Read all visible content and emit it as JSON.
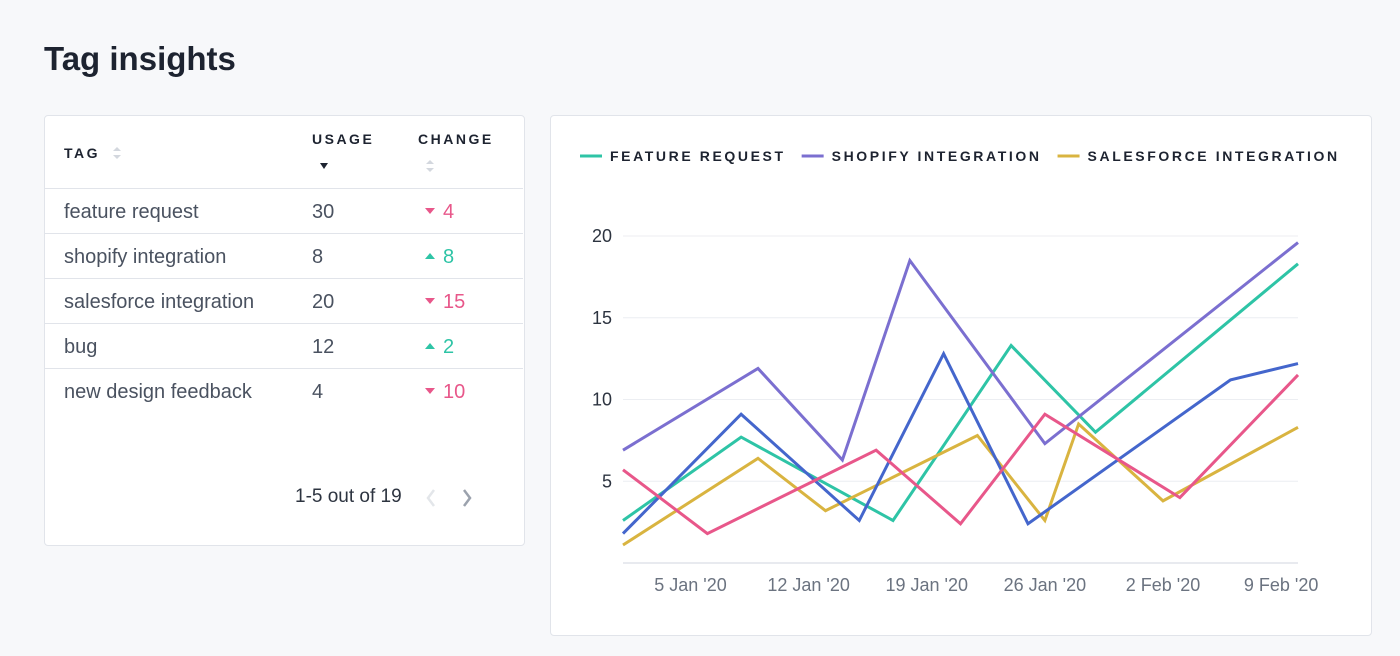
{
  "header": {
    "title": "Tag insights"
  },
  "table": {
    "columns": [
      "TAG",
      "USAGE",
      "CHANGE"
    ],
    "rows": [
      {
        "tag": "feature request",
        "usage": 30,
        "change": 4,
        "direction": "down"
      },
      {
        "tag": "shopify integration",
        "usage": 8,
        "change": 8,
        "direction": "up"
      },
      {
        "tag": "salesforce integration",
        "usage": 20,
        "change": 15,
        "direction": "down"
      },
      {
        "tag": "bug",
        "usage": 12,
        "change": 2,
        "direction": "up"
      },
      {
        "tag": "new design feedback",
        "usage": 4,
        "change": 10,
        "direction": "down"
      }
    ],
    "pagination": "1-5 out of 19"
  },
  "chart_data": {
    "type": "line",
    "legend": "top-left",
    "grid": true,
    "xlim": [
      "2020-01-01",
      "2020-02-10"
    ],
    "xticks": [
      {
        "value": "2020-01-05",
        "label": "5 Jan '20"
      },
      {
        "value": "2020-01-12",
        "label": "12 Jan '20"
      },
      {
        "value": "2020-01-19",
        "label": "19 Jan '20"
      },
      {
        "value": "2020-01-26",
        "label": "26 Jan '20"
      },
      {
        "value": "2020-02-02",
        "label": "2 Feb '20"
      },
      {
        "value": "2020-02-09",
        "label": "9 Feb '20"
      }
    ],
    "ylim": [
      0,
      20
    ],
    "yticks": [
      5,
      10,
      15,
      20
    ],
    "series": [
      {
        "name": "FEATURE REQUEST",
        "color": "#2ec4a6",
        "x": [
          "2020-01-01",
          "2020-01-08",
          "2020-01-17",
          "2020-01-24",
          "2020-01-29",
          "2020-02-10"
        ],
        "values": [
          2.6,
          7.7,
          2.6,
          13.3,
          8.0,
          18.3
        ]
      },
      {
        "name": "SHOPIFY INTEGRATION",
        "color": "#7b6fd0",
        "x": [
          "2020-01-01",
          "2020-01-09",
          "2020-01-14",
          "2020-01-18",
          "2020-01-26",
          "2020-02-10"
        ],
        "values": [
          6.9,
          11.9,
          6.3,
          18.5,
          7.3,
          19.6
        ]
      },
      {
        "name": "SALESFORCE INTEGRATION",
        "color": "#d9b440",
        "x": [
          "2020-01-01",
          "2020-01-09",
          "2020-01-13",
          "2020-01-22",
          "2020-01-26",
          "2020-01-28",
          "2020-02-02",
          "2020-02-10"
        ],
        "values": [
          1.1,
          6.4,
          3.2,
          7.8,
          2.6,
          8.5,
          3.8,
          8.3
        ]
      },
      {
        "color": "#4466cc",
        "x": [
          "2020-01-01",
          "2020-01-08",
          "2020-01-15",
          "2020-01-20",
          "2020-01-25",
          "2020-02-06",
          "2020-02-10"
        ],
        "values": [
          1.8,
          9.1,
          2.6,
          12.8,
          2.4,
          11.2,
          12.2
        ]
      },
      {
        "color": "#e8578a",
        "x": [
          "2020-01-01",
          "2020-01-06",
          "2020-01-16",
          "2020-01-21",
          "2020-01-26",
          "2020-02-03",
          "2020-02-10"
        ],
        "values": [
          5.7,
          1.8,
          6.9,
          2.4,
          9.1,
          4.0,
          11.5
        ]
      }
    ]
  }
}
